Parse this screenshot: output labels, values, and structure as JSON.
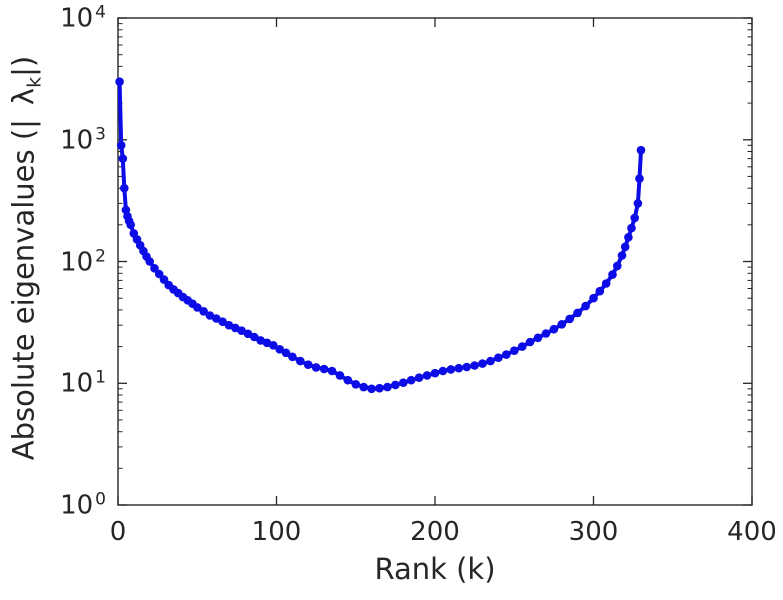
{
  "chart_data": {
    "type": "line",
    "title": "",
    "xlabel": "Rank (k)",
    "ylabel": "Absolute eigenvalues (|λ_k|)",
    "ylabel_parts": {
      "prefix": "Absolute eigenvalues (|",
      "symbol": "λ",
      "subscript": "k",
      "suffix": "|)"
    },
    "xlim": [
      0,
      400
    ],
    "ylim_log10": [
      0,
      4
    ],
    "yscale": "log10",
    "grid": false,
    "legend": "none",
    "x_ticks": [
      0,
      100,
      200,
      300,
      400
    ],
    "y_tick_base": "10",
    "y_tick_exponents": [
      0,
      1,
      2,
      3,
      4
    ],
    "axis_color": "#262626",
    "line_color": "#0c0ce6",
    "marker": "circle",
    "series": [
      {
        "name": "absolute-eigenvalues",
        "x": [
          1,
          2,
          3,
          4,
          5,
          6,
          7,
          8,
          10,
          12,
          14,
          16,
          18,
          20,
          23,
          26,
          29,
          32,
          35,
          38,
          41,
          44,
          47,
          50,
          54,
          58,
          62,
          66,
          70,
          74,
          78,
          82,
          86,
          90,
          94,
          98,
          102,
          106,
          110,
          115,
          120,
          125,
          130,
          135,
          140,
          145,
          150,
          155,
          160,
          165,
          170,
          175,
          180,
          185,
          190,
          195,
          200,
          205,
          210,
          215,
          220,
          225,
          230,
          235,
          240,
          245,
          250,
          255,
          260,
          265,
          270,
          275,
          280,
          285,
          290,
          295,
          300,
          304,
          308,
          312,
          315,
          318,
          320,
          322,
          324,
          326,
          328,
          329,
          330
        ],
        "y": [
          3000,
          900,
          700,
          400,
          265,
          235,
          215,
          200,
          170,
          152,
          136,
          122,
          110,
          100,
          88,
          79,
          71,
          64,
          59,
          55,
          51,
          48,
          45,
          42,
          39,
          36,
          34,
          32,
          30,
          28.5,
          27,
          25.5,
          24,
          22.5,
          21.5,
          20.5,
          19,
          17.8,
          16.5,
          15.2,
          14.2,
          13.5,
          13.1,
          12.6,
          11.6,
          10.6,
          9.8,
          9.3,
          9,
          9.1,
          9.3,
          9.7,
          10.1,
          10.6,
          11.1,
          11.6,
          12.1,
          12.6,
          13,
          13.3,
          13.6,
          14,
          14.5,
          15.2,
          16.2,
          17.2,
          18.5,
          20,
          21.8,
          23.6,
          25.6,
          27.8,
          30.5,
          33.8,
          37.8,
          43,
          50,
          57,
          66,
          78,
          92,
          112,
          132,
          158,
          188,
          228,
          300,
          480,
          820
        ]
      }
    ]
  }
}
